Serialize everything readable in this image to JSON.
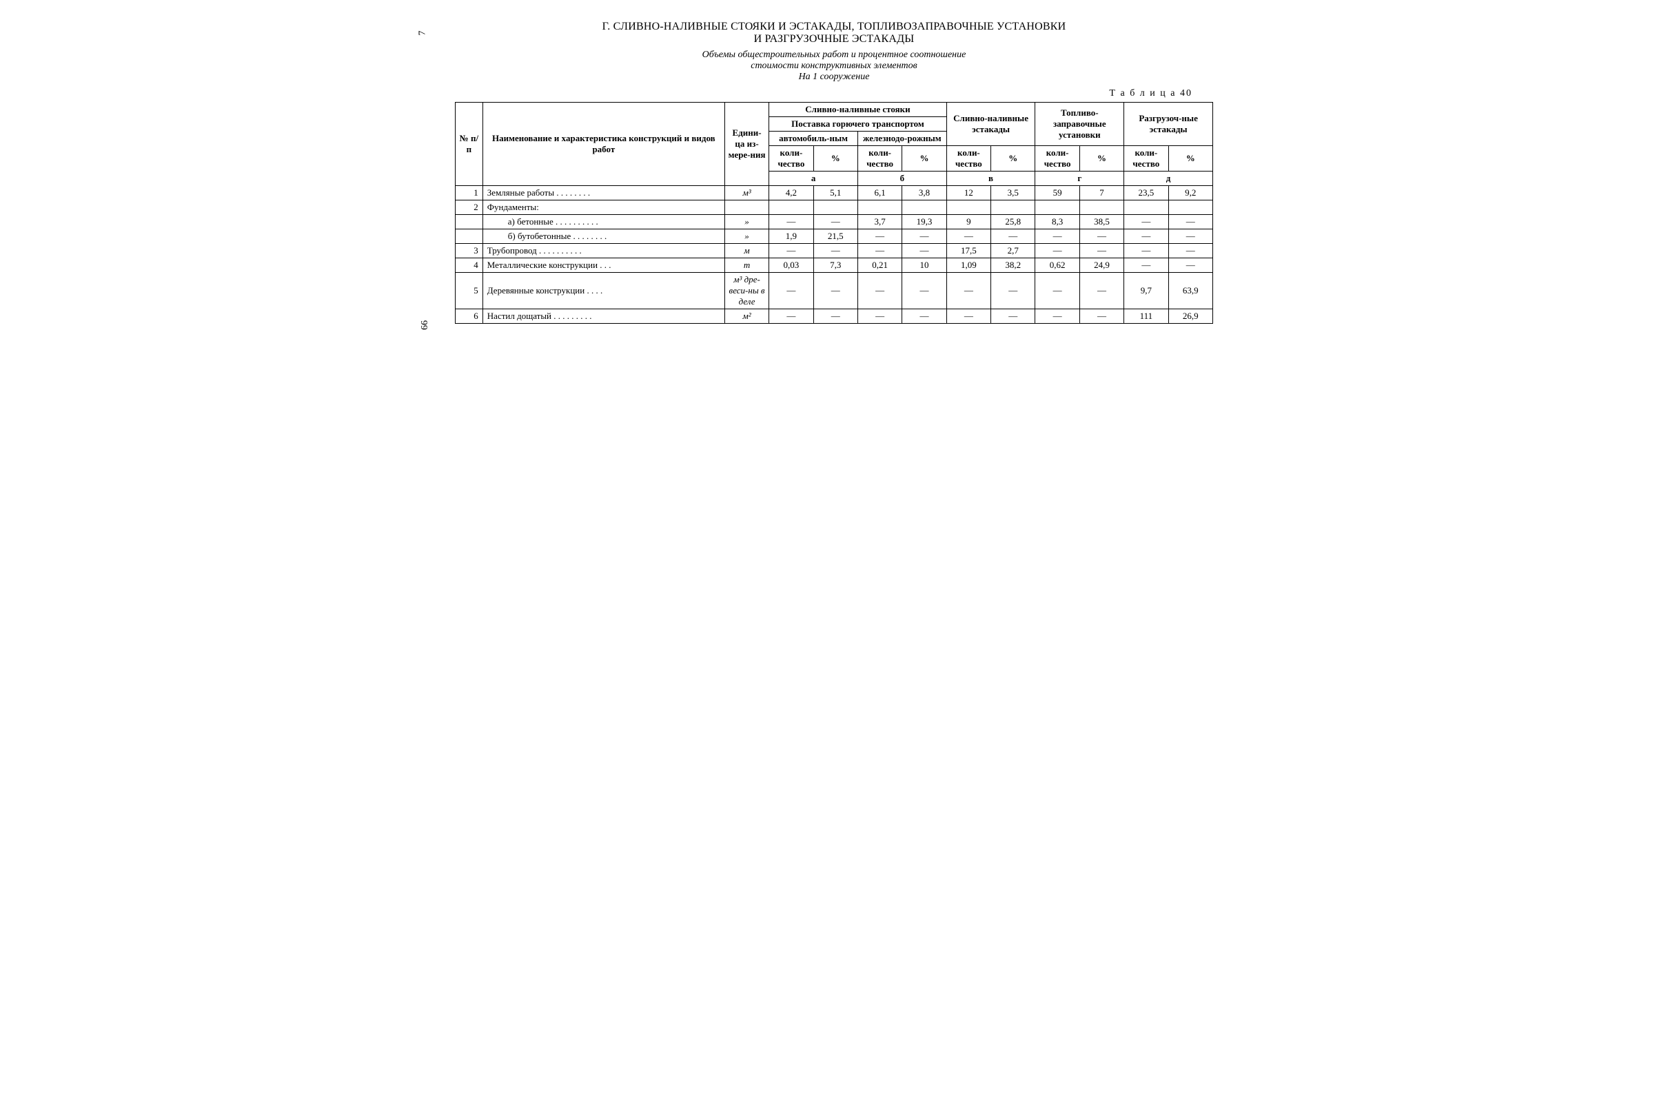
{
  "margin": {
    "top_num": "7",
    "bot_num": "66"
  },
  "heading1": "Г. СЛИВНО-НАЛИВНЫЕ СТОЯКИ И ЭСТАКАДЫ, ТОПЛИВОЗАПРАВОЧНЫЕ УСТАНОВКИ",
  "heading2": "И РАЗГРУЗОЧНЫЕ ЭСТАКАДЫ",
  "subtitle1": "Объемы общестроительных работ и процентное соотношение",
  "subtitle2": "стоимости конструктивных элементов",
  "subtitle3": "На 1 сооружение",
  "tablelabel": "Т а б л и ц а   40",
  "header": {
    "num": "№ п/п",
    "name": "Наименование и характеристика конструкций и видов работ",
    "unit": "Едини-ца из-мере-ния",
    "stoyaki": "Сливно-наливные стояки",
    "post": "Поставка горючего транспортом",
    "auto": "автомобиль-ным",
    "rail": "железнодо-рожным",
    "estak": "Сливно-наливные эстакады",
    "fuel": "Топливо-заправочные установки",
    "razg": "Разгрузоч-ные эстакады",
    "kol": "коли-чество",
    "pct": "%",
    "lbl_a": "а",
    "lbl_b": "б",
    "lbl_v": "в",
    "lbl_g": "г",
    "lbl_d": "д"
  },
  "rows": [
    {
      "no": "1",
      "name": "Земляные работы  .  .  .  .  .  .  .  .",
      "unit": "м³",
      "a1": "4,2",
      "a2": "5,1",
      "b1": "6,1",
      "b2": "3,8",
      "v1": "12",
      "v2": "3,5",
      "g1": "59",
      "g2": "7",
      "d1": "23,5",
      "d2": "9,2"
    },
    {
      "no": "2",
      "name": "Фундаменты:",
      "unit": "",
      "a1": "",
      "a2": "",
      "b1": "",
      "b2": "",
      "v1": "",
      "v2": "",
      "g1": "",
      "g2": "",
      "d1": "",
      "d2": ""
    },
    {
      "no": "",
      "name": "а) бетонные  .  .  .  .  .  .  .  .  .  .",
      "indent": 1,
      "unit": "»",
      "a1": "—",
      "a2": "—",
      "b1": "3,7",
      "b2": "19,3",
      "v1": "9",
      "v2": "25,8",
      "g1": "8,3",
      "g2": "38,5",
      "d1": "—",
      "d2": "—"
    },
    {
      "no": "",
      "name": "б) бутобетонные .  .  .  .  .  .  .  .",
      "indent": 1,
      "unit": "»",
      "a1": "1,9",
      "a2": "21,5",
      "b1": "—",
      "b2": "—",
      "v1": "—",
      "v2": "—",
      "g1": "—",
      "g2": "—",
      "d1": "—",
      "d2": "—"
    },
    {
      "no": "3",
      "name": "Трубопровод   .  .  .  .  .  .  .  .  .  .",
      "unit": "м",
      "a1": "—",
      "a2": "—",
      "b1": "—",
      "b2": "—",
      "v1": "17,5",
      "v2": "2,7",
      "g1": "—",
      "g2": "—",
      "d1": "—",
      "d2": "—"
    },
    {
      "no": "4",
      "name": "Металлические конструкции .  .  .",
      "unit": "т",
      "a1": "0,03",
      "a2": "7,3",
      "b1": "0,21",
      "b2": "10",
      "v1": "1,09",
      "v2": "38,2",
      "g1": "0,62",
      "g2": "24,9",
      "d1": "—",
      "d2": "—"
    },
    {
      "no": "5",
      "name": "Деревянные конструкции  .  .  .  .",
      "unit": "м³ дре-веси-ны в деле",
      "a1": "—",
      "a2": "—",
      "b1": "—",
      "b2": "—",
      "v1": "—",
      "v2": "—",
      "g1": "—",
      "g2": "—",
      "d1": "9,7",
      "d2": "63,9"
    },
    {
      "no": "6",
      "name": "Настил дощатый .  .  .  .  .  .  .  .  .",
      "unit": "м²",
      "a1": "—",
      "a2": "—",
      "b1": "—",
      "b2": "—",
      "v1": "—",
      "v2": "—",
      "g1": "—",
      "g2": "—",
      "d1": "111",
      "d2": "26,9"
    }
  ]
}
